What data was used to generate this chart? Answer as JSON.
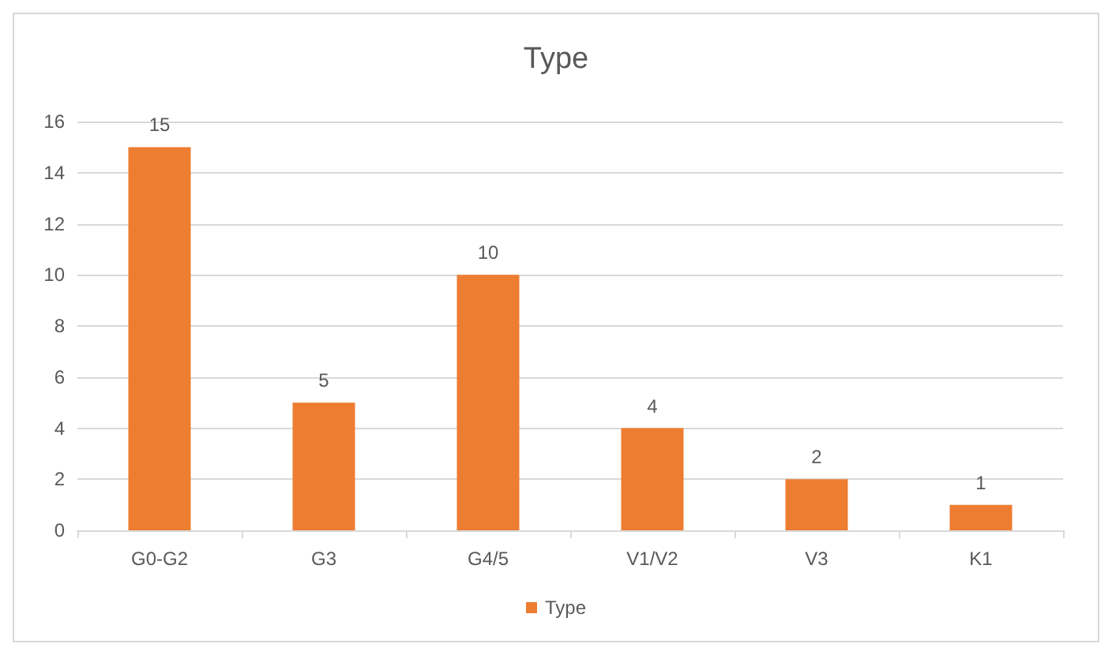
{
  "chart_data": {
    "type": "bar",
    "title": "Type",
    "categories": [
      "G0-G2",
      "G3",
      "G4/5",
      "V1/V2",
      "V3",
      "K1"
    ],
    "series": [
      {
        "name": "Type",
        "color": "#ed7d31",
        "values": [
          15,
          5,
          10,
          4,
          2,
          1
        ]
      }
    ],
    "ylim": [
      0,
      16
    ],
    "yticks": [
      0,
      2,
      4,
      6,
      8,
      10,
      12,
      14,
      16
    ],
    "grid": "y",
    "legend": "bottom",
    "data_labels": true
  }
}
